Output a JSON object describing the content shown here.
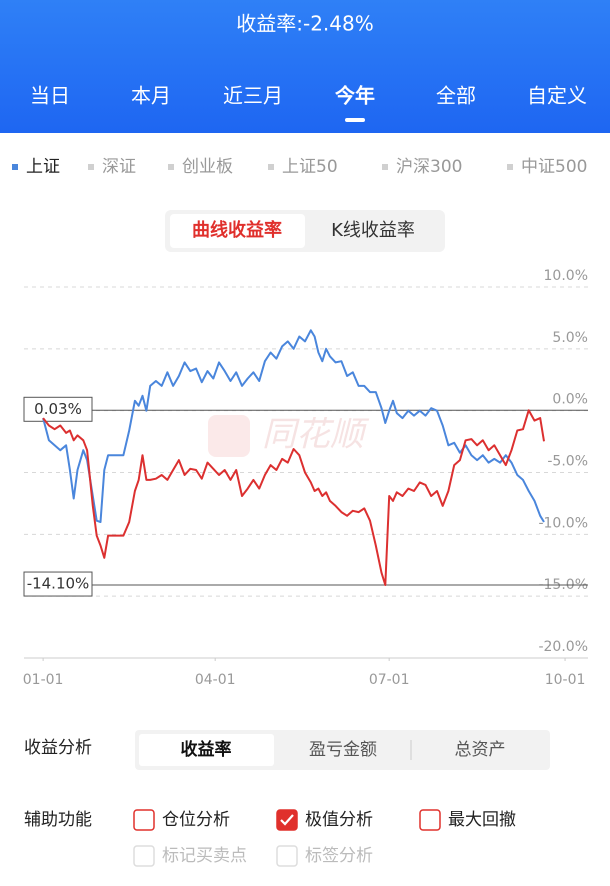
{
  "header": {
    "title": "收益率:-2.48%",
    "tabs": [
      "当日",
      "本月",
      "近三月",
      "今年",
      "全部",
      "自定义"
    ],
    "active_tab": 3
  },
  "benchmark_options": [
    "深证",
    "创业板",
    "上证50",
    "沪深300",
    "中证500"
  ],
  "chart_toggle": {
    "options": [
      "曲线收益率",
      "K线收益率"
    ],
    "active": 0
  },
  "watermark": "同花顺",
  "chart_data": {
    "type": "line",
    "x": [
      0,
      3,
      6,
      9,
      12,
      14,
      16,
      18,
      21,
      23,
      26,
      28,
      30,
      32,
      34,
      38,
      42,
      45,
      48,
      50,
      52,
      54,
      56,
      59,
      62,
      65,
      68,
      71,
      74,
      77,
      80,
      83,
      86,
      89,
      92,
      95,
      98,
      101,
      104,
      107,
      110,
      113,
      116,
      119,
      122,
      125,
      128,
      131,
      134,
      137,
      140,
      142,
      144,
      146,
      148,
      150,
      153,
      156,
      159,
      162,
      165,
      168,
      171,
      174,
      177,
      179,
      181,
      183,
      185,
      188,
      191,
      194,
      197,
      200,
      203,
      206,
      209,
      212,
      215,
      218,
      221,
      224,
      227,
      230,
      233,
      236,
      239,
      242,
      245,
      248,
      251,
      254,
      257,
      260,
      262
    ],
    "xlim": [
      -10,
      285
    ],
    "xticks": [
      {
        "value": 0,
        "label": "01-01"
      },
      {
        "value": 90,
        "label": "04-01"
      },
      {
        "value": 181,
        "label": "07-01"
      },
      {
        "value": 273,
        "label": "10-01"
      }
    ],
    "ylim": [
      -20,
      10
    ],
    "yticks": [
      {
        "value": 10,
        "label": "10.0%"
      },
      {
        "value": 5,
        "label": "5.0%"
      },
      {
        "value": 0,
        "label": "0.0%"
      },
      {
        "value": -5,
        "label": "-5.0%"
      },
      {
        "value": -10,
        "label": "-10.0%"
      },
      {
        "value": -15,
        "label": "-15.0%"
      },
      {
        "value": -20,
        "label": "-20.0%"
      }
    ],
    "grid": true,
    "series": [
      {
        "name": "上证",
        "color": "#4a86dc",
        "values": [
          -0.6,
          -2.4,
          -2.8,
          -3.2,
          -2.8,
          -4.8,
          -7.1,
          -4.8,
          -3.2,
          -4.0,
          -6.9,
          -8.9,
          -9.0,
          -4.8,
          -3.6,
          -3.6,
          -3.6,
          -1.6,
          0.8,
          0.4,
          1.2,
          0,
          2.0,
          2.4,
          2.0,
          3.1,
          2.0,
          2.8,
          3.9,
          3.2,
          3.4,
          2.3,
          3.2,
          2.6,
          3.9,
          3.2,
          2.4,
          3.1,
          2.0,
          2.6,
          3.1,
          2.4,
          4.0,
          4.7,
          4.2,
          5.2,
          5.6,
          5.0,
          6.0,
          5.6,
          6.5,
          6.0,
          4.7,
          4.0,
          5.0,
          4.4,
          3.9,
          4.0,
          2.8,
          3.1,
          2.0,
          2.0,
          1.5,
          1.5,
          0.2,
          -1.0,
          0,
          0.8,
          -0.2,
          -0.6,
          0,
          -0.4,
          0,
          -0.4,
          0.2,
          0,
          -1.2,
          -2.8,
          -2.6,
          -3.4,
          -2.8,
          -3.6,
          -4.0,
          -3.6,
          -4.2,
          -3.9,
          -4.2,
          -3.6,
          -4.2,
          -5.2,
          -5.6,
          -6.5,
          -7.3,
          -8.5,
          -9.0
        ]
      },
      {
        "color": "#dc3030",
        "values": [
          -0.6,
          -1.2,
          -1.5,
          -1.2,
          -1.8,
          -1.6,
          -2.4,
          -2.0,
          -2.4,
          -3.2,
          -7.7,
          -10.1,
          -10.9,
          -11.9,
          -10.1,
          -10.1,
          -10.1,
          -9.0,
          -6.5,
          -5.6,
          -3.6,
          -5.6,
          -5.6,
          -5.5,
          -5.2,
          -5.6,
          -4.8,
          -4.0,
          -5.2,
          -4.7,
          -4.8,
          -5.5,
          -4.2,
          -4.7,
          -5.2,
          -4.8,
          -5.6,
          -4.8,
          -6.9,
          -6.3,
          -5.6,
          -6.3,
          -5.2,
          -4.4,
          -4.8,
          -3.9,
          -4.2,
          -3.1,
          -3.6,
          -5.0,
          -5.8,
          -6.5,
          -6.3,
          -6.9,
          -6.6,
          -7.3,
          -7.7,
          -8.2,
          -8.5,
          -8.1,
          -8.2,
          -7.9,
          -8.9,
          -10.9,
          -13.1,
          -14.1,
          -6.9,
          -7.3,
          -6.6,
          -6.9,
          -6.3,
          -6.5,
          -5.8,
          -6.0,
          -6.9,
          -6.5,
          -7.7,
          -6.5,
          -4.4,
          -4.0,
          -2.4,
          -2.3,
          -2.8,
          -2.4,
          -3.2,
          -2.8,
          -3.6,
          -4.4,
          -3.2,
          -1.6,
          -1.5,
          0.03,
          -0.8,
          -0.6,
          -2.48
        ]
      }
    ],
    "annotations": [
      {
        "value": 0.03,
        "label": "0.03%"
      },
      {
        "value": -14.1,
        "label": "-14.10%"
      }
    ]
  },
  "analysis": {
    "label": "收益分析",
    "options": [
      "收益率",
      "盈亏金额",
      "总资产"
    ],
    "active": 0
  },
  "aux": {
    "label": "辅助功能",
    "options": [
      {
        "label": "仓位分析",
        "checked": false,
        "disabled": false
      },
      {
        "label": "极值分析",
        "checked": true,
        "disabled": false
      },
      {
        "label": "最大回撤",
        "checked": false,
        "disabled": false
      },
      {
        "label": "标记买卖点",
        "checked": false,
        "disabled": true
      },
      {
        "label": "标签分析",
        "checked": false,
        "disabled": true
      }
    ]
  }
}
